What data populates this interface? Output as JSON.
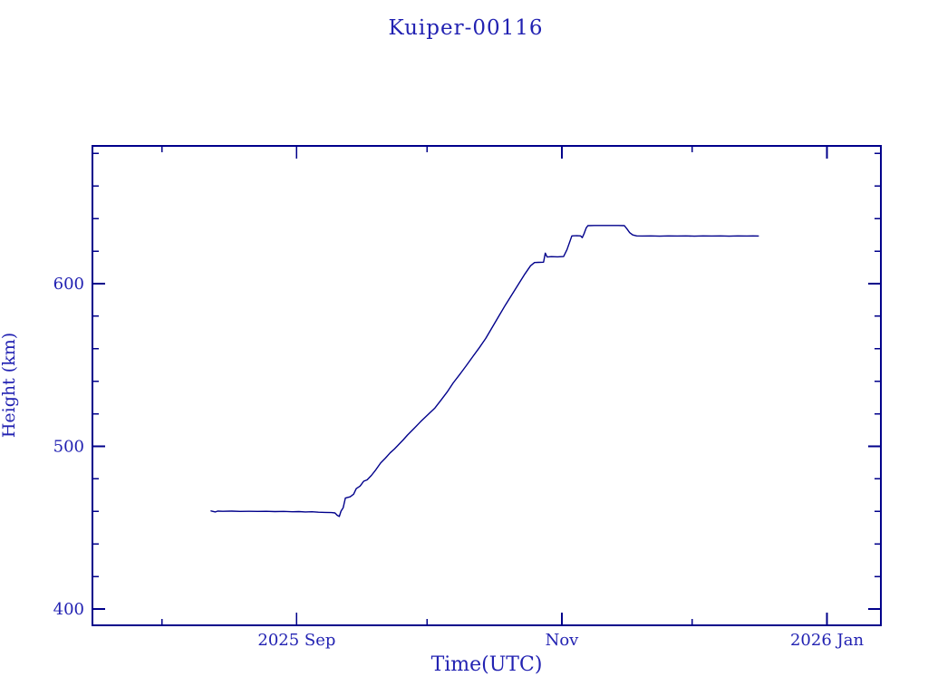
{
  "window": {
    "background": "#ffffff"
  },
  "colors": {
    "line": "#00008b",
    "axis": "#00008b",
    "text": "#2222b2"
  },
  "chart_data": {
    "type": "line",
    "title": "Kuiper-00116",
    "xlabel": "Time(UTC)",
    "ylabel": "Height (km)",
    "x_unit": "days since 2025-07-16",
    "x_range": [
      0,
      181.4
    ],
    "y_range": [
      390,
      684.7
    ],
    "x_major_ticks": [
      {
        "day": 47,
        "label": "2025 Sep"
      },
      {
        "day": 108,
        "label": "Nov"
      },
      {
        "day": 169,
        "label": "2026 Jan"
      }
    ],
    "x_minor_ticks": [
      16,
      77,
      138
    ],
    "y_major_ticks": [
      {
        "km": 400,
        "label": "400"
      },
      {
        "km": 500,
        "label": "500"
      },
      {
        "km": 600,
        "label": "600"
      }
    ],
    "y_minor_ticks": [
      420,
      440,
      460,
      480,
      520,
      540,
      560,
      580,
      620,
      640,
      660,
      680
    ],
    "grid": false,
    "legend": "none",
    "series": [
      {
        "name": "height",
        "color": "#00008b",
        "points": [
          [
            27.3,
            460.3
          ],
          [
            28.3,
            459.7
          ],
          [
            28.8,
            460.2
          ],
          [
            30,
            460.1
          ],
          [
            32,
            460.2
          ],
          [
            34,
            460.0
          ],
          [
            36,
            460.1
          ],
          [
            38,
            460.0
          ],
          [
            40,
            460.1
          ],
          [
            42,
            459.9
          ],
          [
            44,
            460.0
          ],
          [
            46,
            459.8
          ],
          [
            47.5,
            459.9
          ],
          [
            49,
            459.7
          ],
          [
            50.5,
            459.8
          ],
          [
            52,
            459.5
          ],
          [
            53.5,
            459.4
          ],
          [
            55,
            459.3
          ],
          [
            55.8,
            459.1
          ],
          [
            56.3,
            457.7
          ],
          [
            56.8,
            456.9
          ],
          [
            57.2,
            460.2
          ],
          [
            57.7,
            462.3
          ],
          [
            58.2,
            468.2
          ],
          [
            59.3,
            469.0
          ],
          [
            60.1,
            470.6
          ],
          [
            60.7,
            474.0
          ],
          [
            61.6,
            475.6
          ],
          [
            62.4,
            478.6
          ],
          [
            63.2,
            479.4
          ],
          [
            64.2,
            482.2
          ],
          [
            65.2,
            485.6
          ],
          [
            66.3,
            489.8
          ],
          [
            67.4,
            492.8
          ],
          [
            68.5,
            496.0
          ],
          [
            69.5,
            498.4
          ],
          [
            70.5,
            501.2
          ],
          [
            71.5,
            504.0
          ],
          [
            72.5,
            507.0
          ],
          [
            74.0,
            511.0
          ],
          [
            75.5,
            515.2
          ],
          [
            77.0,
            519.0
          ],
          [
            78.8,
            523.6
          ],
          [
            80.2,
            528.4
          ],
          [
            81.6,
            533.4
          ],
          [
            83.0,
            539.0
          ],
          [
            84.5,
            544.2
          ],
          [
            86.0,
            549.6
          ],
          [
            87.5,
            555.2
          ],
          [
            89.0,
            560.6
          ],
          [
            90.5,
            566.4
          ],
          [
            92.0,
            573.2
          ],
          [
            93.5,
            580.0
          ],
          [
            95.0,
            586.8
          ],
          [
            96.5,
            593.2
          ],
          [
            98.0,
            599.6
          ],
          [
            99.5,
            606.0
          ],
          [
            100.8,
            611.0
          ],
          [
            101.7,
            613.0
          ],
          [
            102.6,
            613.1
          ],
          [
            103.8,
            613.2
          ],
          [
            104.2,
            618.8
          ],
          [
            104.6,
            616.4
          ],
          [
            105.6,
            616.6
          ],
          [
            107.0,
            616.5
          ],
          [
            108.4,
            616.7
          ],
          [
            109.2,
            621.0
          ],
          [
            110.3,
            629.4
          ],
          [
            111.4,
            629.5
          ],
          [
            112.3,
            629.4
          ],
          [
            112.7,
            628.3
          ],
          [
            113.1,
            630.6
          ],
          [
            113.6,
            634.2
          ],
          [
            114.0,
            635.7
          ],
          [
            115.5,
            635.8
          ],
          [
            117.5,
            635.8
          ],
          [
            119.5,
            635.8
          ],
          [
            121.0,
            635.8
          ],
          [
            122.4,
            635.7
          ],
          [
            123.0,
            633.6
          ],
          [
            123.6,
            631.4
          ],
          [
            124.3,
            630.0
          ],
          [
            125.2,
            629.4
          ],
          [
            126.5,
            629.3
          ],
          [
            128.5,
            629.4
          ],
          [
            130.5,
            629.2
          ],
          [
            132.5,
            629.4
          ],
          [
            134.5,
            629.3
          ],
          [
            136.5,
            629.4
          ],
          [
            138.5,
            629.2
          ],
          [
            140.5,
            629.4
          ],
          [
            142.5,
            629.3
          ],
          [
            144.5,
            629.4
          ],
          [
            146.5,
            629.2
          ],
          [
            148.5,
            629.4
          ],
          [
            150.5,
            629.3
          ],
          [
            152.0,
            629.4
          ],
          [
            153.2,
            629.3
          ]
        ]
      }
    ]
  }
}
